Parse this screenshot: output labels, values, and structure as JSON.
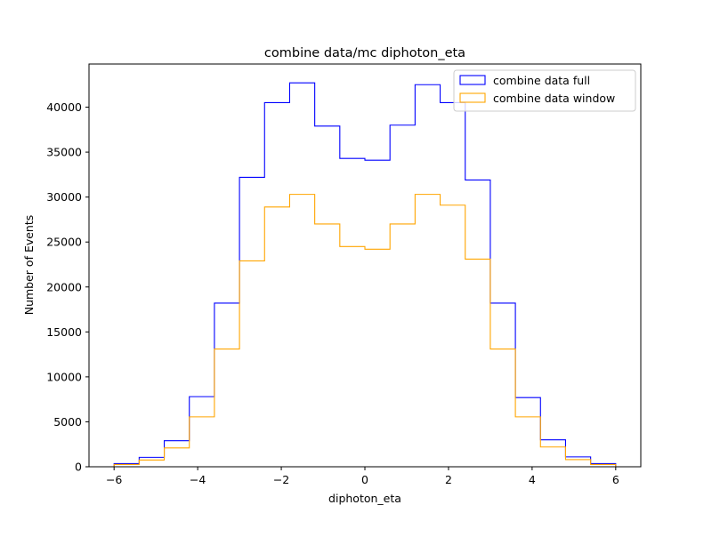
{
  "chart_data": {
    "type": "step",
    "title": "combine data/mc diphoton_eta",
    "xlabel": "diphoton_eta",
    "ylabel": "Number of Events",
    "xlim": [
      -6.6,
      6.6
    ],
    "ylim": [
      0,
      44800
    ],
    "xticks": [
      -6,
      -4,
      -2,
      0,
      2,
      4,
      6
    ],
    "xtick_labels": [
      "−6",
      "−4",
      "−2",
      "0",
      "2",
      "4",
      "6"
    ],
    "yticks": [
      0,
      5000,
      10000,
      15000,
      20000,
      25000,
      30000,
      35000,
      40000
    ],
    "ytick_labels": [
      "0",
      "5000",
      "10000",
      "15000",
      "20000",
      "25000",
      "30000",
      "35000",
      "40000"
    ],
    "grid": false,
    "legend_position": "top-right",
    "bin_edges": [
      -6.0,
      -5.4,
      -4.8,
      -4.2,
      -3.6,
      -3.0,
      -2.4,
      -1.8,
      -1.2,
      -0.6,
      0.0,
      0.6,
      1.2,
      1.8,
      2.4,
      3.0,
      3.6,
      4.2,
      4.8,
      5.4,
      6.0
    ],
    "series": [
      {
        "name": "combine data full",
        "color": "#0000ff",
        "values": [
          350,
          1050,
          2900,
          7800,
          18200,
          32200,
          40500,
          42700,
          37900,
          34300,
          34100,
          38000,
          42500,
          40500,
          31900,
          18200,
          7700,
          3000,
          1100,
          350
        ]
      },
      {
        "name": "combine data window",
        "color": "#ffa500",
        "values": [
          250,
          750,
          2100,
          5550,
          13100,
          22900,
          28900,
          30300,
          27000,
          24500,
          24200,
          27000,
          30300,
          29100,
          23100,
          13100,
          5550,
          2200,
          800,
          250
        ]
      }
    ]
  }
}
